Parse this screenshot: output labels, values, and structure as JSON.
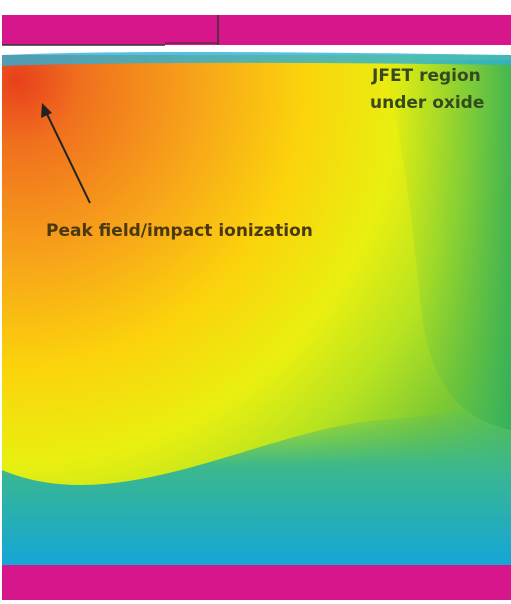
{
  "annotations": {
    "peak": "Peak field/impact ionization",
    "jfet": [
      "JFET region",
      "under oxide"
    ]
  }
}
